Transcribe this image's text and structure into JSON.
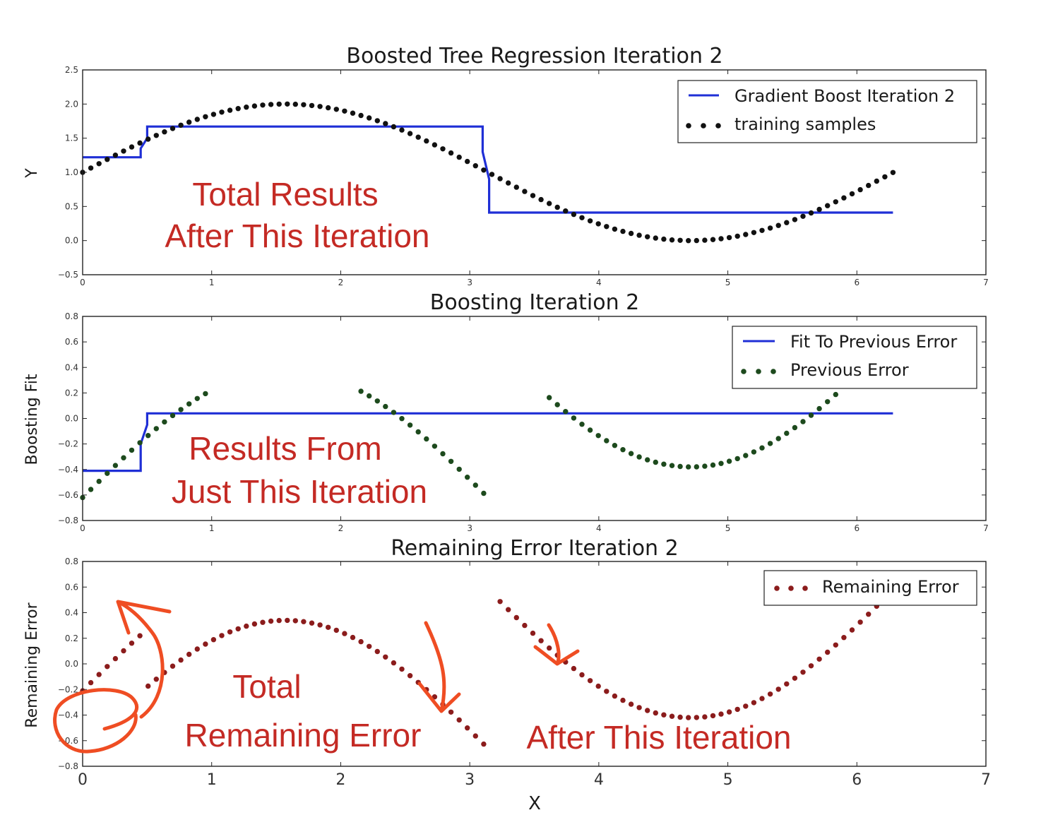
{
  "colors": {
    "blue_line": "#1f2fd6",
    "black_points": "#111111",
    "green_points": "#1d4a1d",
    "red_points": "#8b1c1c",
    "annotation_text": "#c42a24",
    "pen_ink": "#ef4d23"
  },
  "chart_data": [
    {
      "type": "line",
      "title": "Boosted Tree Regression Iteration 2",
      "xlabel": "",
      "ylabel": "Y",
      "xlim": [
        0,
        7
      ],
      "ylim": [
        -0.5,
        2.5
      ],
      "xticks": [
        "0",
        "1",
        "2",
        "3",
        "4",
        "5",
        "6",
        "7"
      ],
      "yticks": [
        "−0.5",
        "0.0",
        "0.5",
        "1.0",
        "1.5",
        "2.0",
        "2.5"
      ],
      "legend_position": "top-right",
      "series": [
        {
          "name": "Gradient Boost Iteration 2",
          "style": "step-line",
          "x": [
            0,
            0.45,
            0.45,
            0.5,
            0.5,
            3.1,
            3.1,
            3.15,
            3.15,
            6.28
          ],
          "y": [
            1.22,
            1.22,
            1.35,
            1.5,
            1.67,
            1.67,
            1.3,
            0.9,
            0.41,
            0.41
          ]
        },
        {
          "name": "training samples",
          "style": "points",
          "points_function": "1 + sin(x)",
          "x_range": [
            0,
            6.28
          ],
          "n_points": 100
        }
      ],
      "annotations": [
        "Total Results",
        "After This Iteration"
      ]
    },
    {
      "type": "line",
      "title": "Boosting Iteration 2",
      "xlabel": "",
      "ylabel": "Boosting Fit",
      "xlim": [
        0,
        7
      ],
      "ylim": [
        -0.8,
        0.8
      ],
      "xticks": [
        "0",
        "1",
        "2",
        "3",
        "4",
        "5",
        "6",
        "7"
      ],
      "yticks": [
        "−0.8",
        "−0.6",
        "−0.4",
        "−0.2",
        "0.0",
        "0.2",
        "0.4",
        "0.6",
        "0.8"
      ],
      "legend_position": "top-right",
      "series": [
        {
          "name": "Fit To Previous Error",
          "style": "step-line",
          "x": [
            0,
            0.45,
            0.45,
            0.5,
            0.5,
            6.28
          ],
          "y": [
            -0.41,
            -0.41,
            -0.2,
            -0.05,
            0.04,
            0.04
          ]
        },
        {
          "name": "Previous Error",
          "style": "points",
          "points_function": "if x<3.14: sin(x)-0.62 ; else sin(x)+0.62",
          "x_range": [
            0,
            6.28
          ],
          "n_points": 100,
          "visible_ymax": 0.22
        }
      ],
      "annotations": [
        "Results From",
        "Just This Iteration"
      ]
    },
    {
      "type": "scatter",
      "title": "Remaining Error Iteration 2",
      "xlabel": "X",
      "ylabel": "Remaining Error",
      "xlim": [
        0,
        7
      ],
      "ylim": [
        -0.8,
        0.8
      ],
      "xticks": [
        "0",
        "1",
        "2",
        "3",
        "4",
        "5",
        "6",
        "7"
      ],
      "yticks": [
        "−0.8",
        "−0.6",
        "−0.4",
        "−0.2",
        "0.0",
        "0.2",
        "0.4",
        "0.6",
        "0.8"
      ],
      "legend_position": "top-right",
      "series": [
        {
          "name": "Remaining Error",
          "style": "points",
          "points_function": "x<0.5: sin(x)-0.21 ; 0.5<=x<3.14: sin(x)-0.66 ; x>=3.14: sin(x)+0.58",
          "x_range": [
            0,
            6.28
          ],
          "n_points": 100,
          "visible_ymax": 0.5
        }
      ],
      "annotations": [
        "Total",
        "Remaining Error",
        "After This Iteration"
      ]
    }
  ]
}
